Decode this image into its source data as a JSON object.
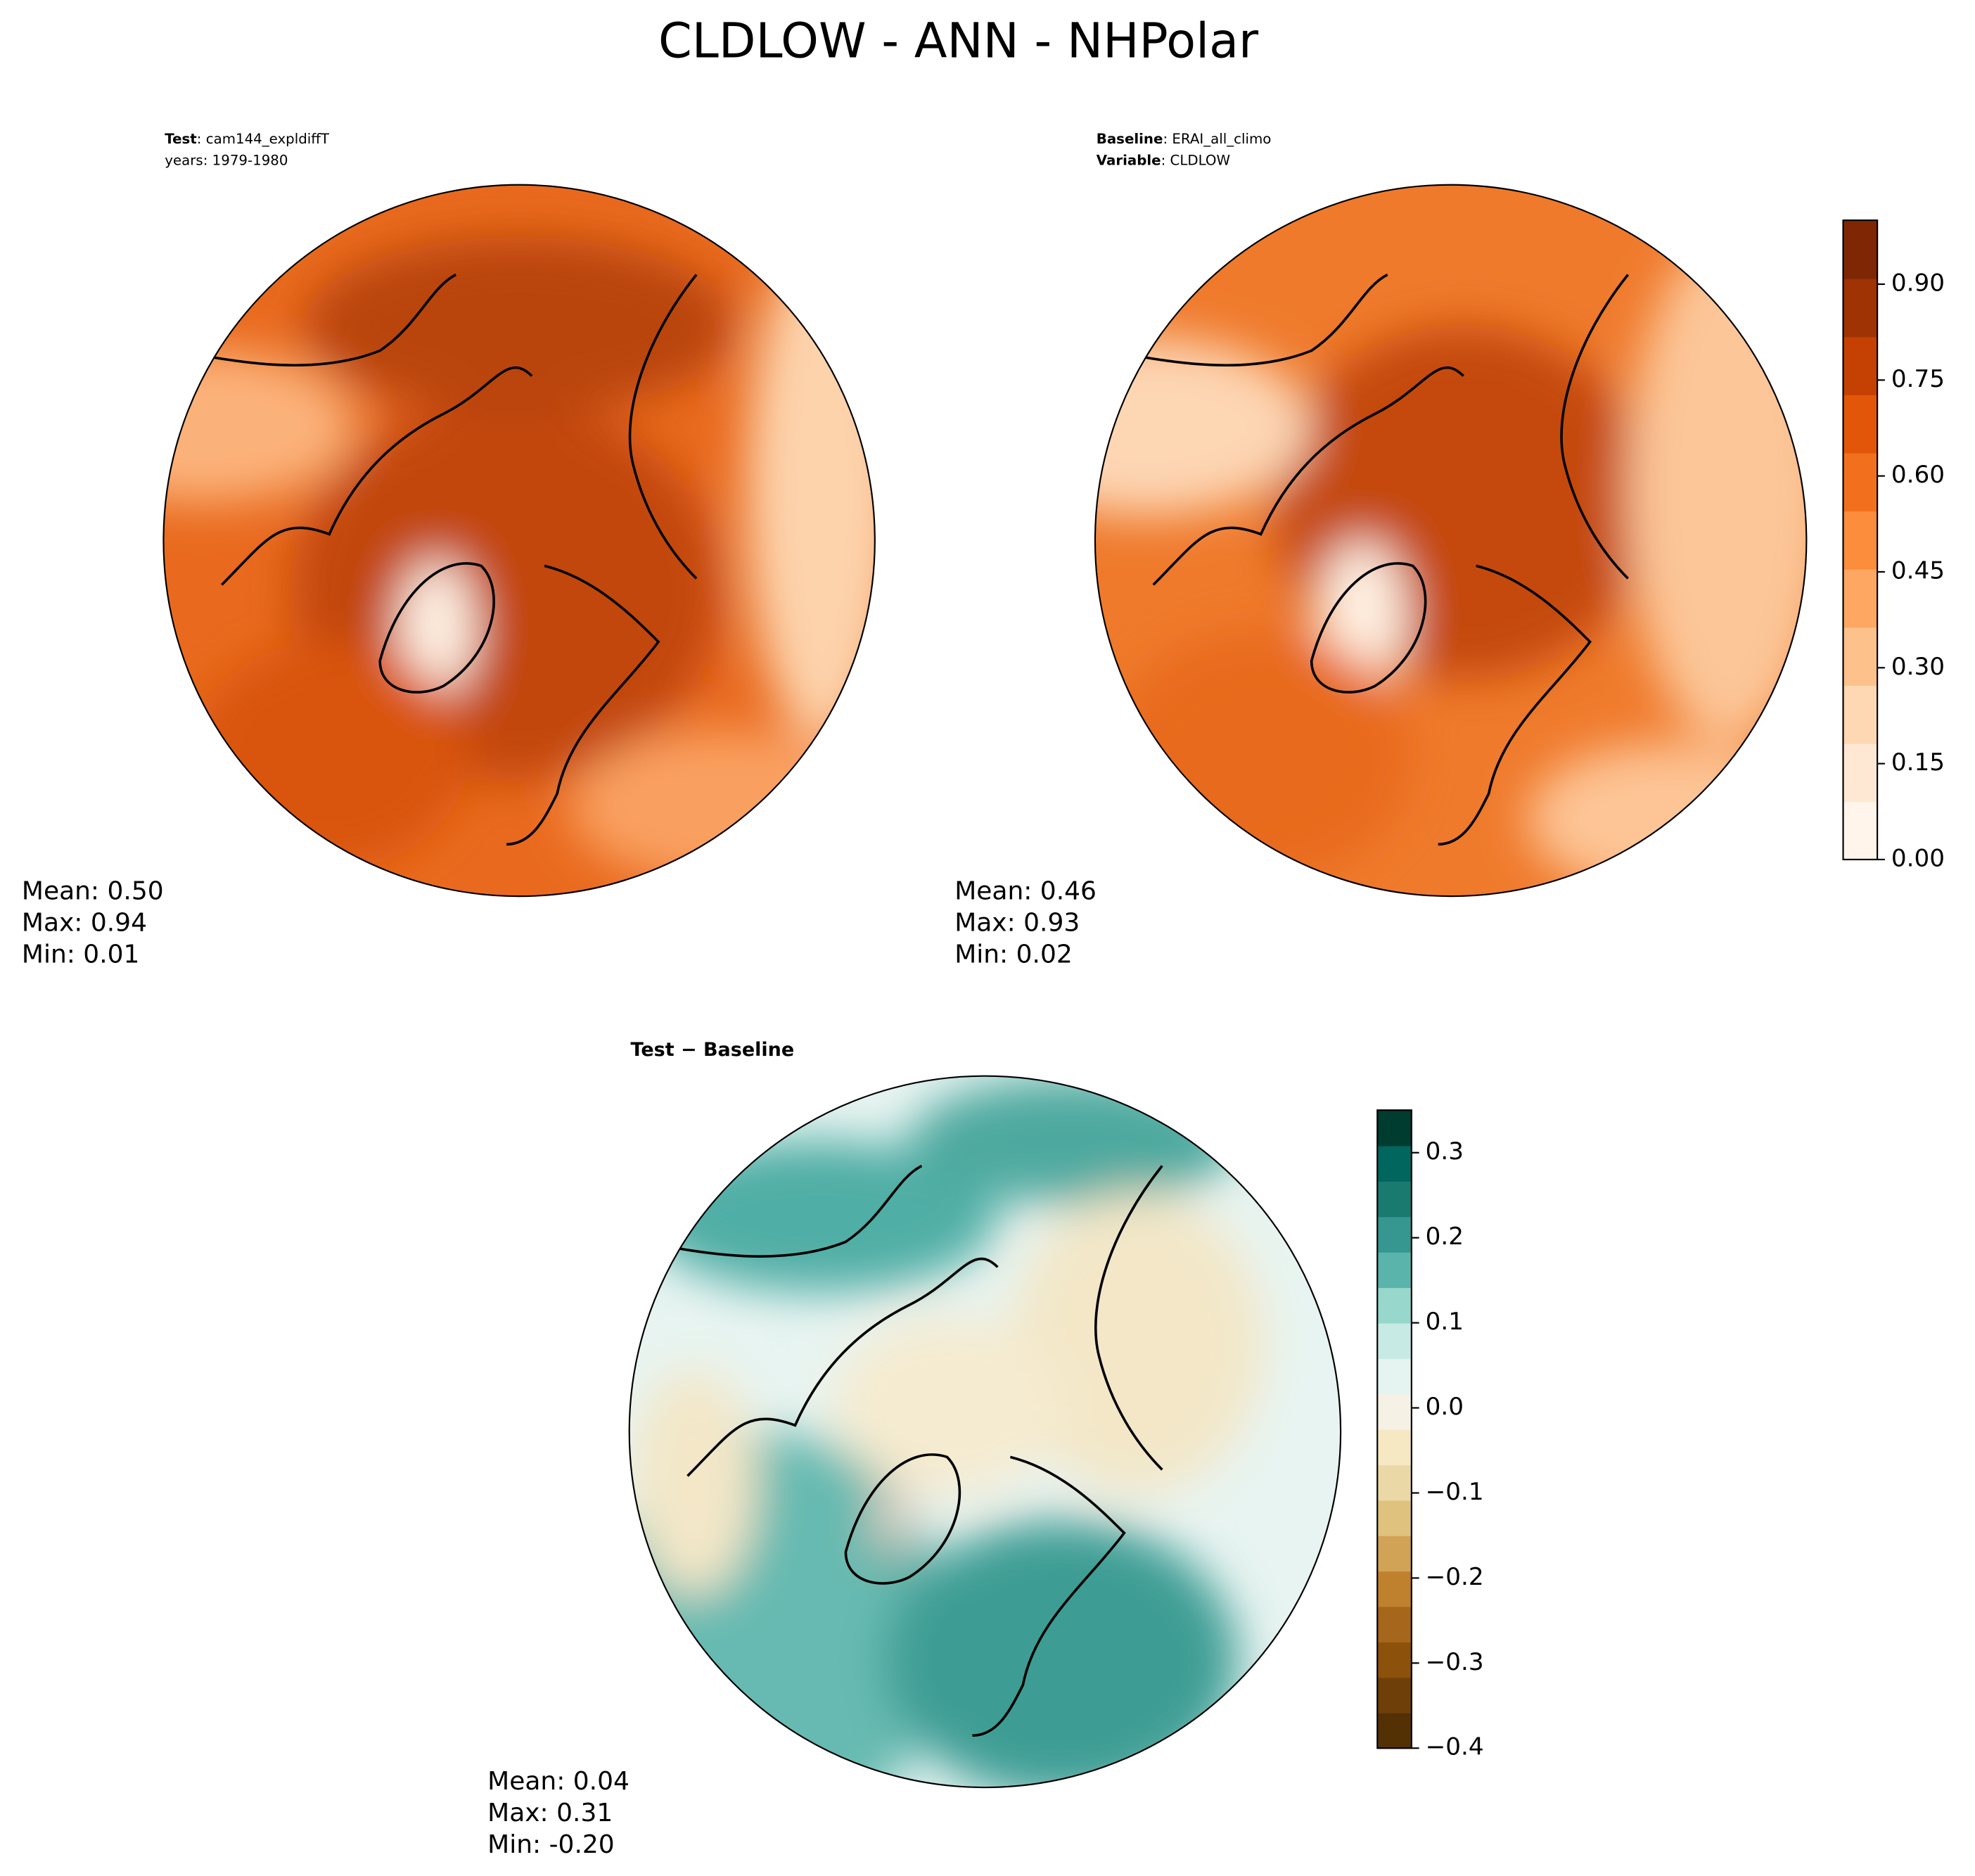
{
  "chart_data": {
    "type": "contourmap",
    "title": "CLDLOW - ANN - NHPolar",
    "panels": [
      {
        "header": [
          {
            "label": "Test",
            "text": ": cam144_expldiffT"
          },
          {
            "text": "years: 1979-1980"
          }
        ],
        "stats": [
          "Mean:  0.50",
          "Max:  0.94",
          "Min:  0.01"
        ]
      },
      {
        "header": [
          {
            "label": "Baseline",
            "text": ": ERAI_all_climo"
          },
          {
            "label": "Variable",
            "text": ": CLDLOW"
          }
        ],
        "stats": [
          "Mean:  0.46",
          "Max:  0.93",
          "Min:  0.02"
        ]
      },
      {
        "title": "Test − Baseline",
        "stats": [
          "Mean:  0.04",
          "Max:  0.31",
          "Min: -0.20"
        ]
      }
    ],
    "colorbars": [
      {
        "clim": [
          0,
          1
        ],
        "colors": [
          "#fff5eb",
          "#fee8d3",
          "#fdd8b3",
          "#fdc28c",
          "#fda762",
          "#fb8d3d",
          "#f2701d",
          "#e25609",
          "#c44103",
          "#9f3303",
          "#7f2704"
        ],
        "ticks": [
          {
            "value": 0,
            "label": "0.00"
          },
          0.15,
          {
            "value": 0.3,
            "label": "0.30"
          },
          0.45,
          {
            "value": 0.6,
            "label": "0.60"
          },
          0.75,
          {
            "value": 0.9,
            "label": "0.90"
          }
        ]
      },
      {
        "clim": [
          -0.4,
          0.35
        ],
        "colors": [
          "#543005",
          "#6e3f09",
          "#8c510a",
          "#a6661b",
          "#bf812d",
          "#d1a357",
          "#dfc27d",
          "#ebd8a7",
          "#f6e8c3",
          "#f5f1e4",
          "#e5f3f1",
          "#c7eae5",
          "#97d7cc",
          "#5ab4ac",
          "#35978f",
          "#1a7a70",
          "#01665e",
          "#003c30"
        ],
        "ticks": [
          {
            "value": -0.4,
            "label": "−0.4"
          },
          {
            "value": -0.3,
            "label": "−0.3"
          },
          {
            "value": -0.2,
            "label": "−0.2"
          },
          {
            "value": -0.1,
            "label": "−0.1"
          },
          {
            "value": 0,
            "label": "0.0"
          },
          0.1,
          0.2,
          0.3
        ]
      }
    ]
  }
}
